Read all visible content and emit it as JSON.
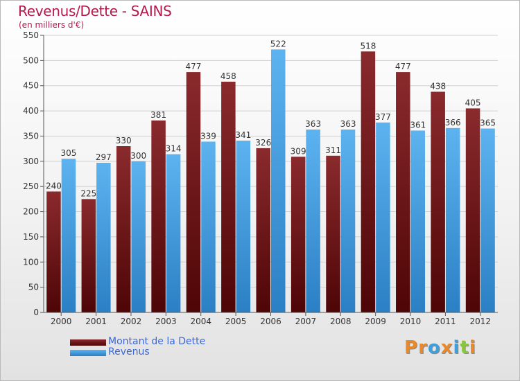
{
  "header": {
    "title": "Revenus/Dette - SAINS",
    "subtitle": "(en milliers d'€)"
  },
  "legend": {
    "items": [
      {
        "label": "Montant de la Dette",
        "color": "#6e1518"
      },
      {
        "label": "Revenus",
        "color": "#4aa3e6"
      }
    ]
  },
  "logo": {
    "text": "Proxiti",
    "letters": [
      {
        "ch": "P",
        "color": "#e8892b"
      },
      {
        "ch": "r",
        "color": "#e8892b"
      },
      {
        "ch": "o",
        "color": "#3f9fdc"
      },
      {
        "ch": "x",
        "color": "#e8892b"
      },
      {
        "ch": "i",
        "color": "#3f9fdc"
      },
      {
        "ch": "t",
        "color": "#8cc63f"
      },
      {
        "ch": "i",
        "color": "#e8892b"
      }
    ]
  },
  "chart_data": {
    "type": "bar",
    "title": "Revenus/Dette - SAINS",
    "subtitle": "(en milliers d'€)",
    "categories": [
      "2000",
      "2001",
      "2002",
      "2003",
      "2004",
      "2005",
      "2006",
      "2007",
      "2008",
      "2009",
      "2010",
      "2011",
      "2012"
    ],
    "series": [
      {
        "name": "Montant de la Dette",
        "color": "#6e1518",
        "values": [
          240,
          225,
          330,
          381,
          477,
          458,
          326,
          309,
          311,
          518,
          477,
          438,
          405
        ]
      },
      {
        "name": "Revenus",
        "color": "#4aa3e6",
        "values": [
          305,
          297,
          300,
          314,
          339,
          341,
          522,
          363,
          363,
          377,
          361,
          366,
          365
        ]
      }
    ],
    "ylim": [
      0,
      550
    ],
    "yticks": [
      0,
      50,
      100,
      150,
      200,
      250,
      300,
      350,
      400,
      450,
      500,
      550
    ],
    "grid": true,
    "legend_position": "bottom-left"
  }
}
